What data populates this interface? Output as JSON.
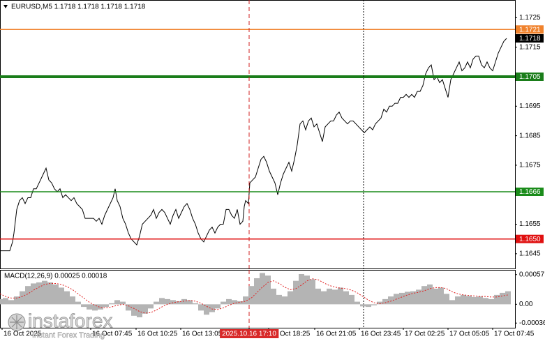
{
  "chart_data": [
    {
      "type": "line",
      "title": "EURUSD,M5  1.1718 1.1718 1.1718 1.1718",
      "color": "#000000",
      "grid": false,
      "xlim": [
        0,
        369
      ],
      "ylim": [
        1.164,
        1.1731
      ],
      "yticks": [
        1.1725,
        1.1715,
        1.1695,
        1.1685,
        1.1675,
        1.1655,
        1.1645
      ],
      "x": [
        0,
        4,
        7,
        9,
        10,
        12,
        14,
        16,
        18,
        20,
        22,
        24,
        26,
        28,
        30,
        32,
        33,
        35,
        37,
        39,
        41,
        43,
        45,
        47,
        49,
        51,
        53,
        55,
        57,
        59,
        61,
        63,
        65,
        67,
        69,
        71,
        73,
        75,
        77,
        79,
        81,
        82.5,
        84,
        86,
        88,
        90,
        92,
        94,
        96,
        98,
        100,
        102,
        104,
        106,
        108,
        110,
        112,
        114,
        116,
        118,
        120,
        122,
        124,
        126,
        128,
        130,
        132,
        134,
        136,
        138,
        140,
        142,
        144,
        146,
        148,
        150,
        152,
        154,
        156,
        158,
        160,
        162,
        164,
        166,
        168,
        170,
        172,
        174,
        175,
        176,
        178,
        179,
        181,
        183,
        185,
        187,
        189,
        191,
        193,
        195,
        197,
        199,
        201,
        203,
        205,
        207,
        209,
        211,
        213,
        215,
        217,
        219,
        221,
        223,
        225,
        227,
        229,
        231,
        233,
        235,
        237,
        239,
        241,
        243,
        245,
        247,
        249,
        251,
        253,
        255,
        257,
        259,
        261,
        263,
        265,
        267,
        269,
        271,
        273,
        275,
        277,
        279,
        281,
        283,
        285,
        287,
        289,
        291,
        293,
        295,
        297,
        299,
        301,
        303,
        305,
        307,
        309,
        311,
        313,
        315,
        317,
        319,
        321,
        323,
        325,
        327,
        329,
        331,
        333,
        335,
        337,
        339,
        341,
        343,
        345,
        347,
        349,
        351,
        353,
        355,
        357,
        359,
        361,
        363
      ],
      "values": [
        1.1646,
        1.1646,
        1.1646,
        1.1649,
        1.1652,
        1.166,
        1.1663,
        1.1664,
        1.1662,
        1.1664,
        1.1664,
        1.1667,
        1.1667,
        1.1669,
        1.1671,
        1.1673,
        1.1674,
        1.167,
        1.1669,
        1.1667,
        1.1666,
        1.1667,
        1.1664,
        1.1665,
        1.1664,
        1.1663,
        1.1664,
        1.1662,
        1.1661,
        1.166,
        1.1657,
        1.1657,
        1.1657,
        1.1657,
        1.1656,
        1.1657,
        1.1655,
        1.1658,
        1.166,
        1.1662,
        1.1664,
        1.1667,
        1.1663,
        1.1661,
        1.1657,
        1.1655,
        1.1652,
        1.165,
        1.1649,
        1.1648,
        1.1651,
        1.1655,
        1.1656,
        1.1657,
        1.1658,
        1.166,
        1.1657,
        1.1659,
        1.166,
        1.1659,
        1.1657,
        1.1655,
        1.1658,
        1.166,
        1.1657,
        1.1659,
        1.1661,
        1.1662,
        1.166,
        1.1657,
        1.1655,
        1.1652,
        1.165,
        1.1649,
        1.1651,
        1.1653,
        1.1654,
        1.1652,
        1.1654,
        1.1655,
        1.1655,
        1.166,
        1.166,
        1.1658,
        1.1657,
        1.166,
        1.1655,
        1.1656,
        1.1661,
        1.1663,
        1.1662,
        1.1669,
        1.167,
        1.1671,
        1.1674,
        1.1677,
        1.1678,
        1.1676,
        1.1673,
        1.1671,
        1.1669,
        1.1665,
        1.1669,
        1.1672,
        1.1674,
        1.1676,
        1.1673,
        1.1677,
        1.1682,
        1.1689,
        1.169,
        1.1687,
        1.169,
        1.1691,
        1.1688,
        1.1689,
        1.1686,
        1.1683,
        1.1688,
        1.1689,
        1.169,
        1.169,
        1.1692,
        1.1693,
        1.1691,
        1.169,
        1.1689,
        1.169,
        1.169,
        1.1689,
        1.1688,
        1.1687,
        1.1686,
        1.1687,
        1.1688,
        1.1687,
        1.1689,
        1.169,
        1.1691,
        1.1694,
        1.1693,
        1.1695,
        1.1695,
        1.1696,
        1.1696,
        1.1698,
        1.1698,
        1.1699,
        1.1698,
        1.1699,
        1.1698,
        1.17,
        1.17,
        1.1702,
        1.1706,
        1.1708,
        1.1709,
        1.1704,
        1.1705,
        1.1703,
        1.1704,
        1.1701,
        1.1698,
        1.1704,
        1.1706,
        1.1708,
        1.171,
        1.1707,
        1.1708,
        1.171,
        1.1708,
        1.1711,
        1.1712,
        1.1712,
        1.1709,
        1.1708,
        1.171,
        1.1708,
        1.1707,
        1.171,
        1.1713,
        1.1715,
        1.1717,
        1.1718
      ],
      "levels": [
        {
          "value": 1.1721,
          "color": "#f0822c"
        },
        {
          "value": 1.1705,
          "color": "#1a7d1a",
          "thick": true
        },
        {
          "value": 1.1666,
          "color": "#1a8c1a"
        },
        {
          "value": 1.165,
          "label": "1.1650",
          "color": "#e01010"
        }
      ],
      "last": {
        "value": 1.1718,
        "color": "#000000"
      },
      "vlines": [
        {
          "x": 178.5,
          "color": "#d02020",
          "dash": "dashed"
        },
        {
          "x": 260.5,
          "color": "#000000",
          "dash": "dotted"
        }
      ]
    },
    {
      "type": "macd",
      "title": "MACD(12,26,9) 0.00025 0.00018",
      "xlim": [
        0,
        369
      ],
      "ylim": [
        -0.00045,
        0.00066
      ],
      "yticks": [
        0.00057,
        {
          "value": 0,
          "label": "0.00"
        },
        -0.00036
      ],
      "xticks": [
        {
          "value": 1.5,
          "label": "16 Oct 2025"
        },
        {
          "value": 65,
          "label": "16 Oct 07:45"
        },
        {
          "value": 97.5,
          "label": "16 Oct 10:25"
        },
        {
          "value": 129.5,
          "label": "16 Oct 13:05"
        },
        {
          "value": 178.5,
          "label": "2025.10.16 17:10"
        },
        {
          "value": 192.5,
          "label": "16 Oct 18:25"
        },
        {
          "value": 225.5,
          "label": "16 Oct 21:05"
        },
        {
          "value": 257.5,
          "label": "16 Oct 23:45"
        },
        {
          "value": 289,
          "label": "17 Oct 02:25"
        },
        {
          "value": 321,
          "label": "17 Oct 05:05"
        },
        {
          "value": 353,
          "label": "17 Oct 07:45"
        }
      ],
      "highlight_xtick": 4,
      "x": [
        0,
        4,
        8,
        12,
        16,
        20,
        24,
        28,
        32,
        36,
        40,
        44,
        48,
        52,
        56,
        60,
        64,
        68,
        72,
        76,
        80,
        84,
        88,
        92,
        96,
        100,
        104,
        108,
        112,
        116,
        120,
        124,
        128,
        132,
        136,
        140,
        144,
        148,
        152,
        156,
        160,
        164,
        168,
        172,
        176,
        180,
        184,
        188,
        192,
        196,
        200,
        204,
        208,
        212,
        216,
        220,
        224,
        228,
        232,
        236,
        240,
        244,
        248,
        252,
        256,
        260,
        264,
        268,
        272,
        276,
        280,
        284,
        288,
        292,
        296,
        300,
        304,
        308,
        312,
        316,
        320,
        324,
        328,
        332,
        336,
        340,
        344,
        348,
        352,
        356,
        360,
        364
      ],
      "series": [
        {
          "color": "#b4b4b4",
          "values": [
            0.0001,
            0.00012,
            8e-05,
            0.00015,
            0.00025,
            0.00035,
            0.0004,
            0.00042,
            0.00045,
            0.00042,
            0.00038,
            0.00032,
            0.00025,
            0.00015,
            5e-05,
            -5e-05,
            -0.0001,
            -0.00012,
            -0.0001,
            -5e-05,
            2e-05,
            8e-05,
            5e-05,
            -0.00012,
            -0.00022,
            -0.00025,
            -0.00018,
            -8e-05,
            5e-05,
            0.00012,
            0.0001,
            8e-05,
            6e-05,
            0.0001,
            8e-05,
            2e-05,
            -0.00012,
            -0.0002,
            -0.00015,
            -8e-05,
            5e-05,
            0.0001,
            8e-05,
            6e-05,
            0.00015,
            0.00035,
            0.0005,
            0.0006,
            0.00055,
            0.0003,
            0.00018,
            0.00015,
            0.00025,
            0.00045,
            0.00058,
            0.00055,
            0.00048,
            0.0003,
            0.00025,
            0.0003,
            0.00028,
            0.00032,
            0.00025,
            0.00018,
            5e-05,
            -4e-05,
            -5e-05,
            -2e-05,
            5e-05,
            0.0001,
            0.00015,
            0.0002,
            0.00022,
            0.00024,
            0.00025,
            0.00028,
            0.00035,
            0.00038,
            0.0003,
            0.00032,
            0.0002,
            8e-05,
            0.00015,
            0.00018,
            0.00016,
            0.00014,
            0.00015,
            0.00012,
            0.0001,
            0.00018,
            0.00022,
            0.00025
          ]
        },
        {
          "color": "#e02020",
          "dash": "dotted",
          "values": [
            0.0002,
            0.00015,
            0.00012,
            0.00012,
            0.00015,
            0.0002,
            0.00027,
            0.00033,
            0.00038,
            0.0004,
            0.0004,
            0.00038,
            0.00034,
            0.00028,
            0.0002,
            0.00012,
            4e-05,
            -2e-05,
            -6e-05,
            -7e-05,
            -5e-05,
            -2e-05,
            0,
            -3e-05,
            -8e-05,
            -0.00014,
            -0.00017,
            -0.00016,
            -0.00011,
            -5e-05,
            0,
            3e-05,
            5e-05,
            6e-05,
            7e-05,
            6e-05,
            2e-05,
            -4e-05,
            -9e-05,
            -0.0001,
            -7e-05,
            -2e-05,
            2e-05,
            4e-05,
            6e-05,
            0.00012,
            0.00022,
            0.00033,
            0.00042,
            0.00045,
            0.0004,
            0.00033,
            0.00028,
            0.0003,
            0.00037,
            0.00045,
            0.00049,
            0.00047,
            0.00041,
            0.00036,
            0.00033,
            0.00031,
            0.0003,
            0.00027,
            0.00022,
            0.00015,
            8e-05,
            3e-05,
            1e-05,
            3e-05,
            6e-05,
            0.0001,
            0.00014,
            0.00018,
            0.00021,
            0.00023,
            0.00026,
            0.0003,
            0.00032,
            0.00032,
            0.0003,
            0.00024,
            0.0002,
            0.00018,
            0.00017,
            0.00016,
            0.00015,
            0.00015,
            0.00014,
            0.00014,
            0.00016,
            0.00018
          ]
        }
      ],
      "watermark": {
        "brand": "instaforex",
        "tagline": "Instant Forex Trading"
      }
    }
  ]
}
